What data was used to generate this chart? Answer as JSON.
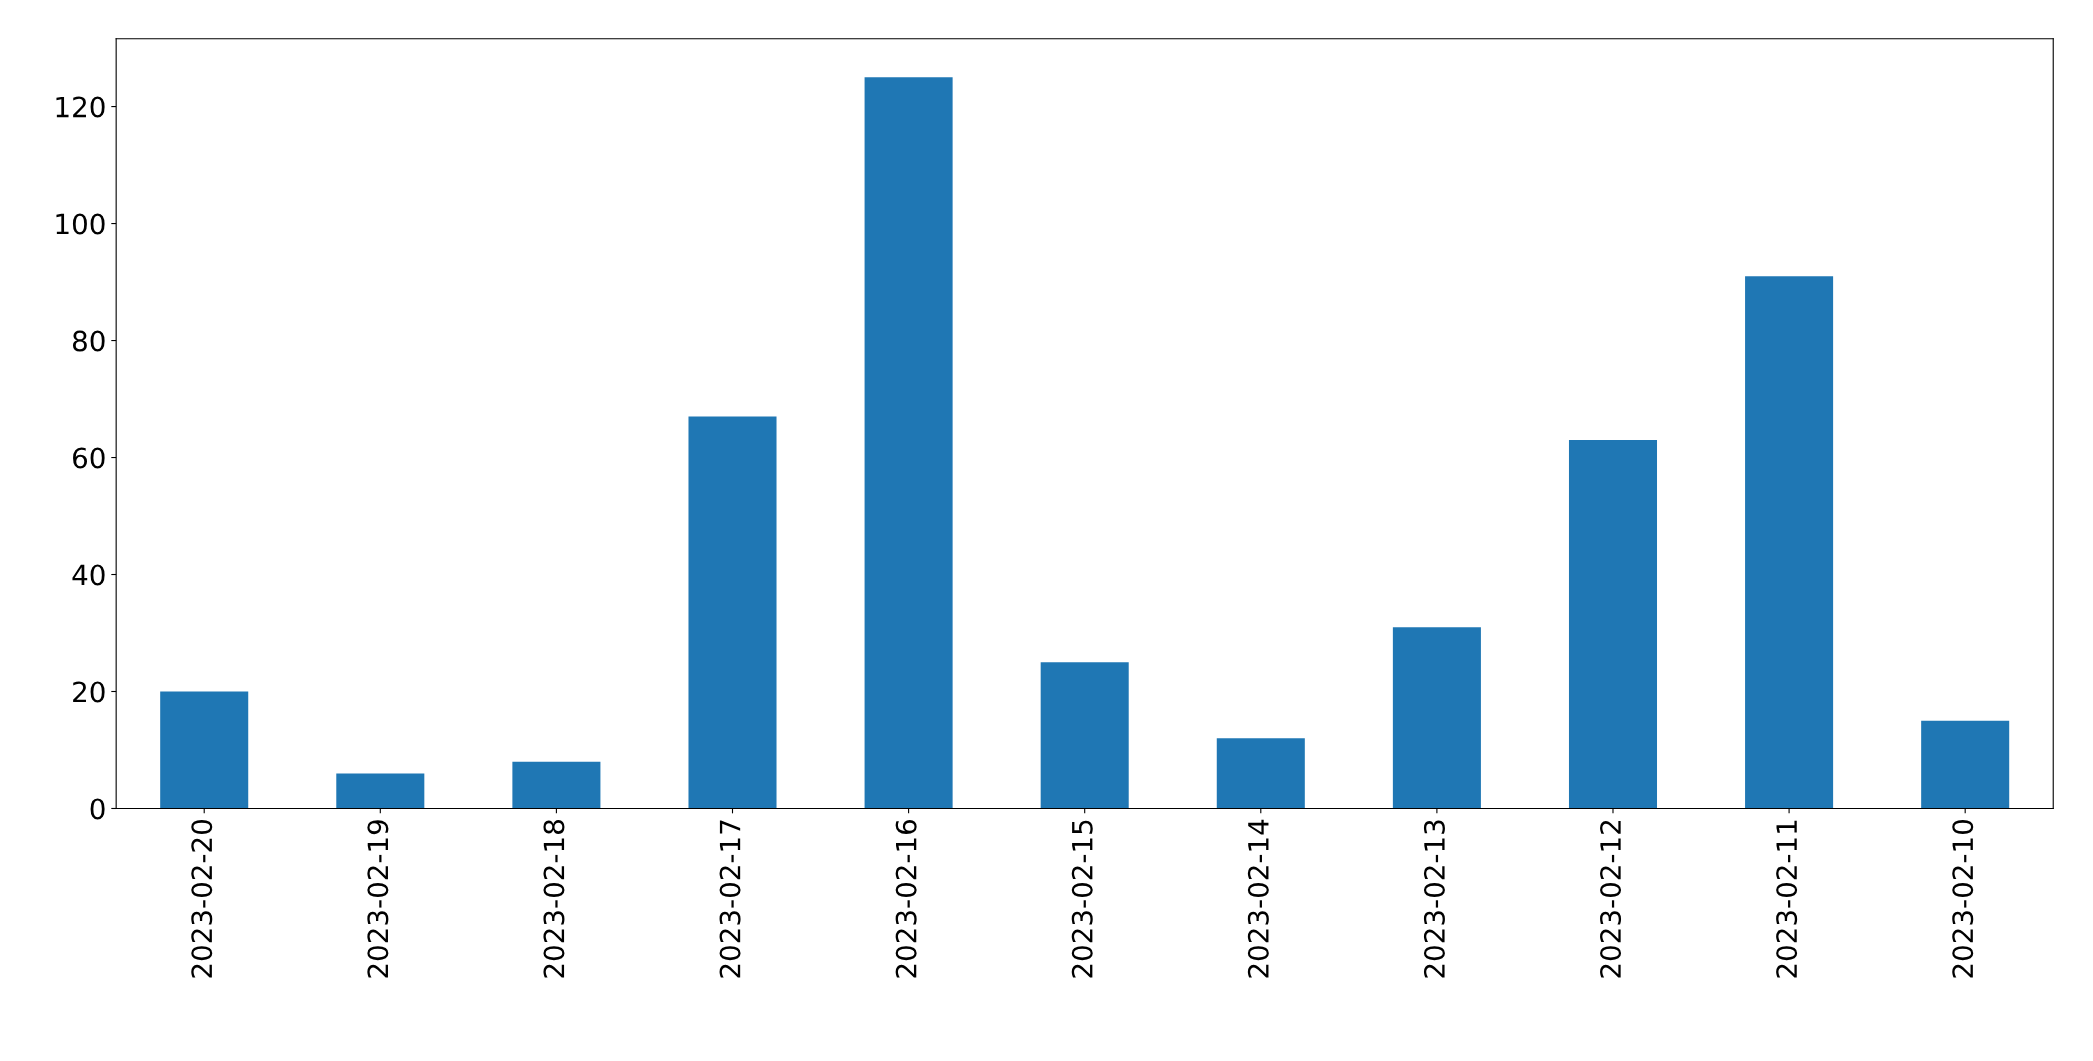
{
  "chart_data": {
    "type": "bar",
    "categories": [
      "2023-02-20",
      "2023-02-19",
      "2023-02-18",
      "2023-02-17",
      "2023-02-16",
      "2023-02-15",
      "2023-02-14",
      "2023-02-13",
      "2023-02-12",
      "2023-02-11",
      "2023-02-10"
    ],
    "values": [
      20,
      6,
      8,
      67,
      125,
      25,
      12,
      31,
      63,
      91,
      15
    ],
    "color": "#1f77b4",
    "ylim": [
      0,
      131.6
    ],
    "yticks": [
      0,
      20,
      40,
      60,
      80,
      100,
      120
    ],
    "grid": false,
    "legend": false
  }
}
